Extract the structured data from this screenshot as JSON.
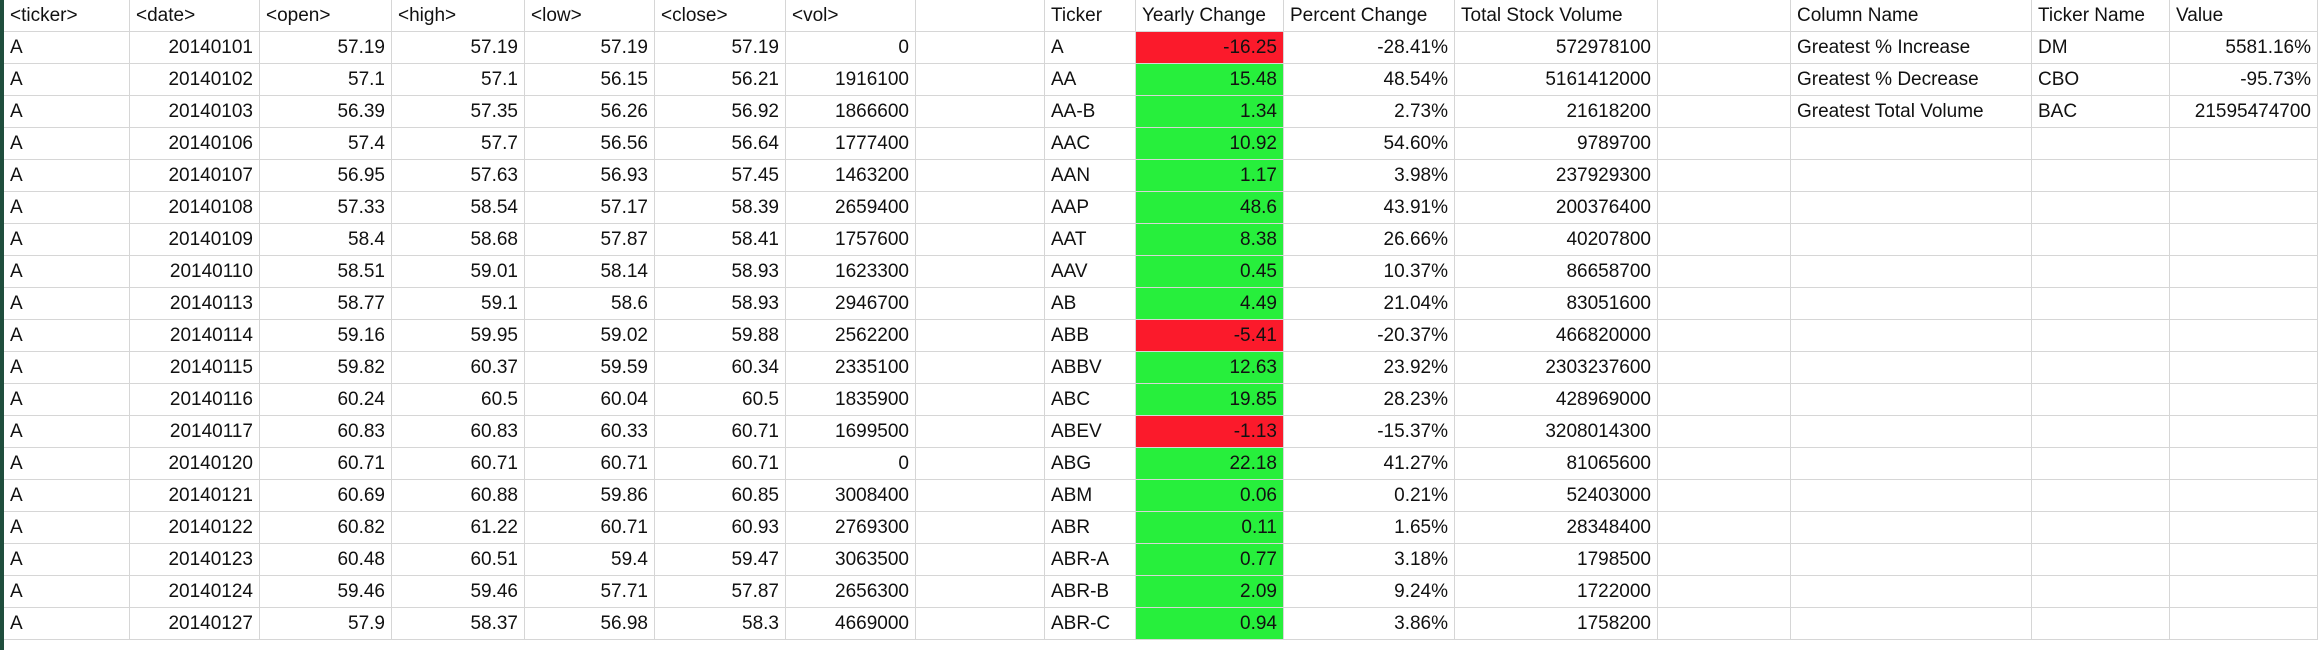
{
  "colors": {
    "negative": "#fb1a2b",
    "positive": "#27ef3c",
    "gridline": "#d6d6d6"
  },
  "raw_headers": [
    "<ticker>",
    "<date>",
    "<open>",
    "<high>",
    "<low>",
    "<close>",
    "<vol>"
  ],
  "raw_rows": [
    [
      "A",
      "20140101",
      "57.19",
      "57.19",
      "57.19",
      "57.19",
      "0"
    ],
    [
      "A",
      "20140102",
      "57.1",
      "57.1",
      "56.15",
      "56.21",
      "1916100"
    ],
    [
      "A",
      "20140103",
      "56.39",
      "57.35",
      "56.26",
      "56.92",
      "1866600"
    ],
    [
      "A",
      "20140106",
      "57.4",
      "57.7",
      "56.56",
      "56.64",
      "1777400"
    ],
    [
      "A",
      "20140107",
      "56.95",
      "57.63",
      "56.93",
      "57.45",
      "1463200"
    ],
    [
      "A",
      "20140108",
      "57.33",
      "58.54",
      "57.17",
      "58.39",
      "2659400"
    ],
    [
      "A",
      "20140109",
      "58.4",
      "58.68",
      "57.87",
      "58.41",
      "1757600"
    ],
    [
      "A",
      "20140110",
      "58.51",
      "59.01",
      "58.14",
      "58.93",
      "1623300"
    ],
    [
      "A",
      "20140113",
      "58.77",
      "59.1",
      "58.6",
      "58.93",
      "2946700"
    ],
    [
      "A",
      "20140114",
      "59.16",
      "59.95",
      "59.02",
      "59.88",
      "2562200"
    ],
    [
      "A",
      "20140115",
      "59.82",
      "60.37",
      "59.59",
      "60.34",
      "2335100"
    ],
    [
      "A",
      "20140116",
      "60.24",
      "60.5",
      "60.04",
      "60.5",
      "1835900"
    ],
    [
      "A",
      "20140117",
      "60.83",
      "60.83",
      "60.33",
      "60.71",
      "1699500"
    ],
    [
      "A",
      "20140120",
      "60.71",
      "60.71",
      "60.71",
      "60.71",
      "0"
    ],
    [
      "A",
      "20140121",
      "60.69",
      "60.88",
      "59.86",
      "60.85",
      "3008400"
    ],
    [
      "A",
      "20140122",
      "60.82",
      "61.22",
      "60.71",
      "60.93",
      "2769300"
    ],
    [
      "A",
      "20140123",
      "60.48",
      "60.51",
      "59.4",
      "59.47",
      "3063500"
    ],
    [
      "A",
      "20140124",
      "59.46",
      "59.46",
      "57.71",
      "57.87",
      "2656300"
    ],
    [
      "A",
      "20140127",
      "57.9",
      "58.37",
      "56.98",
      "58.3",
      "4669000"
    ]
  ],
  "summary_headers": [
    "Ticker",
    "Yearly Change",
    "Percent Change",
    "Total Stock Volume"
  ],
  "summary_rows": [
    [
      "A",
      "-16.25",
      "-28.41%",
      "572978100"
    ],
    [
      "AA",
      "15.48",
      "48.54%",
      "5161412000"
    ],
    [
      "AA-B",
      "1.34",
      "2.73%",
      "21618200"
    ],
    [
      "AAC",
      "10.92",
      "54.60%",
      "9789700"
    ],
    [
      "AAN",
      "1.17",
      "3.98%",
      "237929300"
    ],
    [
      "AAP",
      "48.6",
      "43.91%",
      "200376400"
    ],
    [
      "AAT",
      "8.38",
      "26.66%",
      "40207800"
    ],
    [
      "AAV",
      "0.45",
      "10.37%",
      "86658700"
    ],
    [
      "AB",
      "4.49",
      "21.04%",
      "83051600"
    ],
    [
      "ABB",
      "-5.41",
      "-20.37%",
      "466820000"
    ],
    [
      "ABBV",
      "12.63",
      "23.92%",
      "2303237600"
    ],
    [
      "ABC",
      "19.85",
      "28.23%",
      "428969000"
    ],
    [
      "ABEV",
      "-1.13",
      "-15.37%",
      "3208014300"
    ],
    [
      "ABG",
      "22.18",
      "41.27%",
      "81065600"
    ],
    [
      "ABM",
      "0.06",
      "0.21%",
      "52403000"
    ],
    [
      "ABR",
      "0.11",
      "1.65%",
      "28348400"
    ],
    [
      "ABR-A",
      "0.77",
      "3.18%",
      "1798500"
    ],
    [
      "ABR-B",
      "2.09",
      "9.24%",
      "1722000"
    ],
    [
      "ABR-C",
      "0.94",
      "3.86%",
      "1758200"
    ]
  ],
  "greatest_headers": [
    "Column Name",
    "Ticker Name",
    "Value"
  ],
  "greatest_rows": [
    [
      "Greatest % Increase",
      "DM",
      "5581.16%"
    ],
    [
      "Greatest % Decrease",
      "CBO",
      "-95.73%"
    ],
    [
      "Greatest Total Volume",
      "BAC",
      "21595474700"
    ]
  ]
}
